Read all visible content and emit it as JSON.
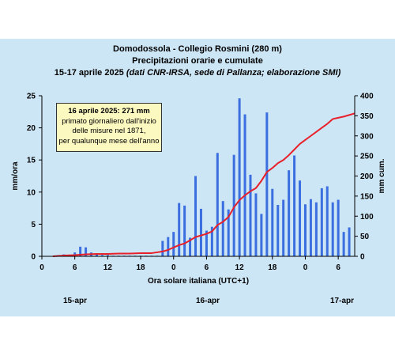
{
  "chart_data": {
    "type": "bar",
    "title_lines": [
      "Domodossola - Collegio Rosmini (280 m)",
      "Precipitazioni orarie e cumulate"
    ],
    "subtitle_prefix": "15-17 aprile 2025 ",
    "subtitle_italic": "(dati CNR-IRSA, sede di Pallanza; elaborazione SMI)",
    "xlabel": "Ora solare italiana (UTC+1)",
    "ylabel_left": "mm/ora",
    "ylabel_right": "mm cum.",
    "ylim_left": [
      0,
      25
    ],
    "ylim_right": [
      0,
      400
    ],
    "yticks_left": [
      0,
      5,
      10,
      15,
      20,
      25
    ],
    "yticks_right": [
      0,
      50,
      100,
      150,
      200,
      250,
      300,
      350,
      400
    ],
    "xlim_hours": [
      0,
      48
    ],
    "xticks": [
      {
        "hour": 0,
        "label": "0"
      },
      {
        "hour": 6,
        "label": "6"
      },
      {
        "hour": 12,
        "label": "12"
      },
      {
        "hour": 18,
        "label": "18"
      },
      {
        "hour": 24,
        "label": "0"
      },
      {
        "hour": 30,
        "label": "6"
      },
      {
        "hour": 36,
        "label": "12"
      },
      {
        "hour": 42,
        "label": "18"
      },
      {
        "hour": 48,
        "label": "0"
      },
      {
        "hour": 54,
        "label": "6"
      }
    ],
    "x_axis_max_hours": 57,
    "day_labels": [
      {
        "text": "15-apr",
        "hour": 6
      },
      {
        "text": "16-apr",
        "hour": 30
      },
      {
        "text": "17-apr",
        "hour": 54
      }
    ],
    "hourly": {
      "name": "mm/ora",
      "color": "#3b6fe0",
      "hours": [
        3,
        4,
        5,
        6,
        7,
        8,
        9,
        10,
        11,
        12,
        13,
        14,
        15,
        16,
        17,
        18,
        19,
        20,
        21,
        22,
        23,
        24,
        25,
        26,
        27,
        28,
        29,
        30,
        31,
        32,
        33,
        34,
        35,
        36,
        37,
        38,
        39,
        40,
        41,
        42,
        43,
        44,
        45,
        46,
        47,
        48,
        49,
        50,
        51,
        52,
        53,
        54,
        55,
        56
      ],
      "values": [
        0.2,
        0.3,
        0.2,
        0.6,
        1.5,
        1.4,
        0.6,
        0.3,
        0.2,
        0.2,
        0.1,
        0.1,
        0.1,
        0.1,
        0.1,
        0.1,
        0.1,
        0.1,
        0.1,
        2.4,
        3.0,
        3.8,
        8.3,
        7.9,
        2.9,
        12.5,
        7.4,
        4.0,
        4.6,
        16.1,
        8.6,
        7.3,
        15.8,
        24.6,
        22.1,
        12.7,
        9.8,
        6.6,
        22.4,
        10.5,
        8.0,
        8.8,
        13.4,
        15.7,
        11.8,
        8.1,
        8.9,
        8.4,
        10.6,
        10.9,
        8.4,
        8.8,
        3.8,
        4.5
      ]
    },
    "cumulative": {
      "name": "mm cum.",
      "color": "#e8202a",
      "hours": [
        2,
        4,
        6,
        8,
        10,
        12,
        14,
        16,
        18,
        20,
        21,
        22,
        23,
        24,
        25,
        26,
        27,
        28,
        29,
        30,
        31,
        32,
        33,
        34,
        35,
        36,
        37,
        38,
        39,
        40,
        41,
        42,
        43,
        44,
        45,
        46,
        47,
        48,
        49,
        50,
        51,
        52,
        53,
        54,
        55,
        56,
        57
      ],
      "values": [
        0,
        2,
        3,
        5,
        6,
        6,
        7,
        7,
        8,
        8,
        10,
        12,
        16,
        22,
        28,
        32,
        40,
        48,
        52,
        56,
        62,
        78,
        86,
        98,
        122,
        140,
        152,
        162,
        170,
        188,
        210,
        220,
        232,
        240,
        252,
        266,
        280,
        290,
        300,
        310,
        320,
        330,
        342,
        345,
        348,
        352,
        356
      ]
    },
    "annotation": {
      "headline": "16 aprile 2025: 271 mm",
      "lines": [
        "primato giornaliero dall'inizio",
        "delle misure nel 1871,",
        "per qualunque mese dell'anno"
      ]
    }
  }
}
